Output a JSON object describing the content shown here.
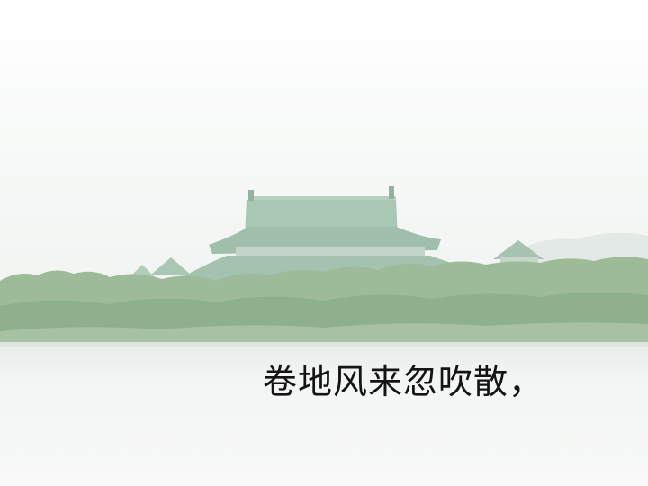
{
  "caption": "卷地风来忽吹散，",
  "colors": {
    "sky": "#f6f8f7",
    "haze": "#eef2ef",
    "roof": "#a9c8b4",
    "roof_dark": "#8fb19d",
    "wall": "#c7d6cc",
    "trees": "#9dbb98",
    "trees_dark": "#86a883",
    "water": "#f1f3f2",
    "caption_text": "#141414"
  },
  "icons": [
    "traditional-pavilion",
    "tree-line",
    "lake"
  ]
}
